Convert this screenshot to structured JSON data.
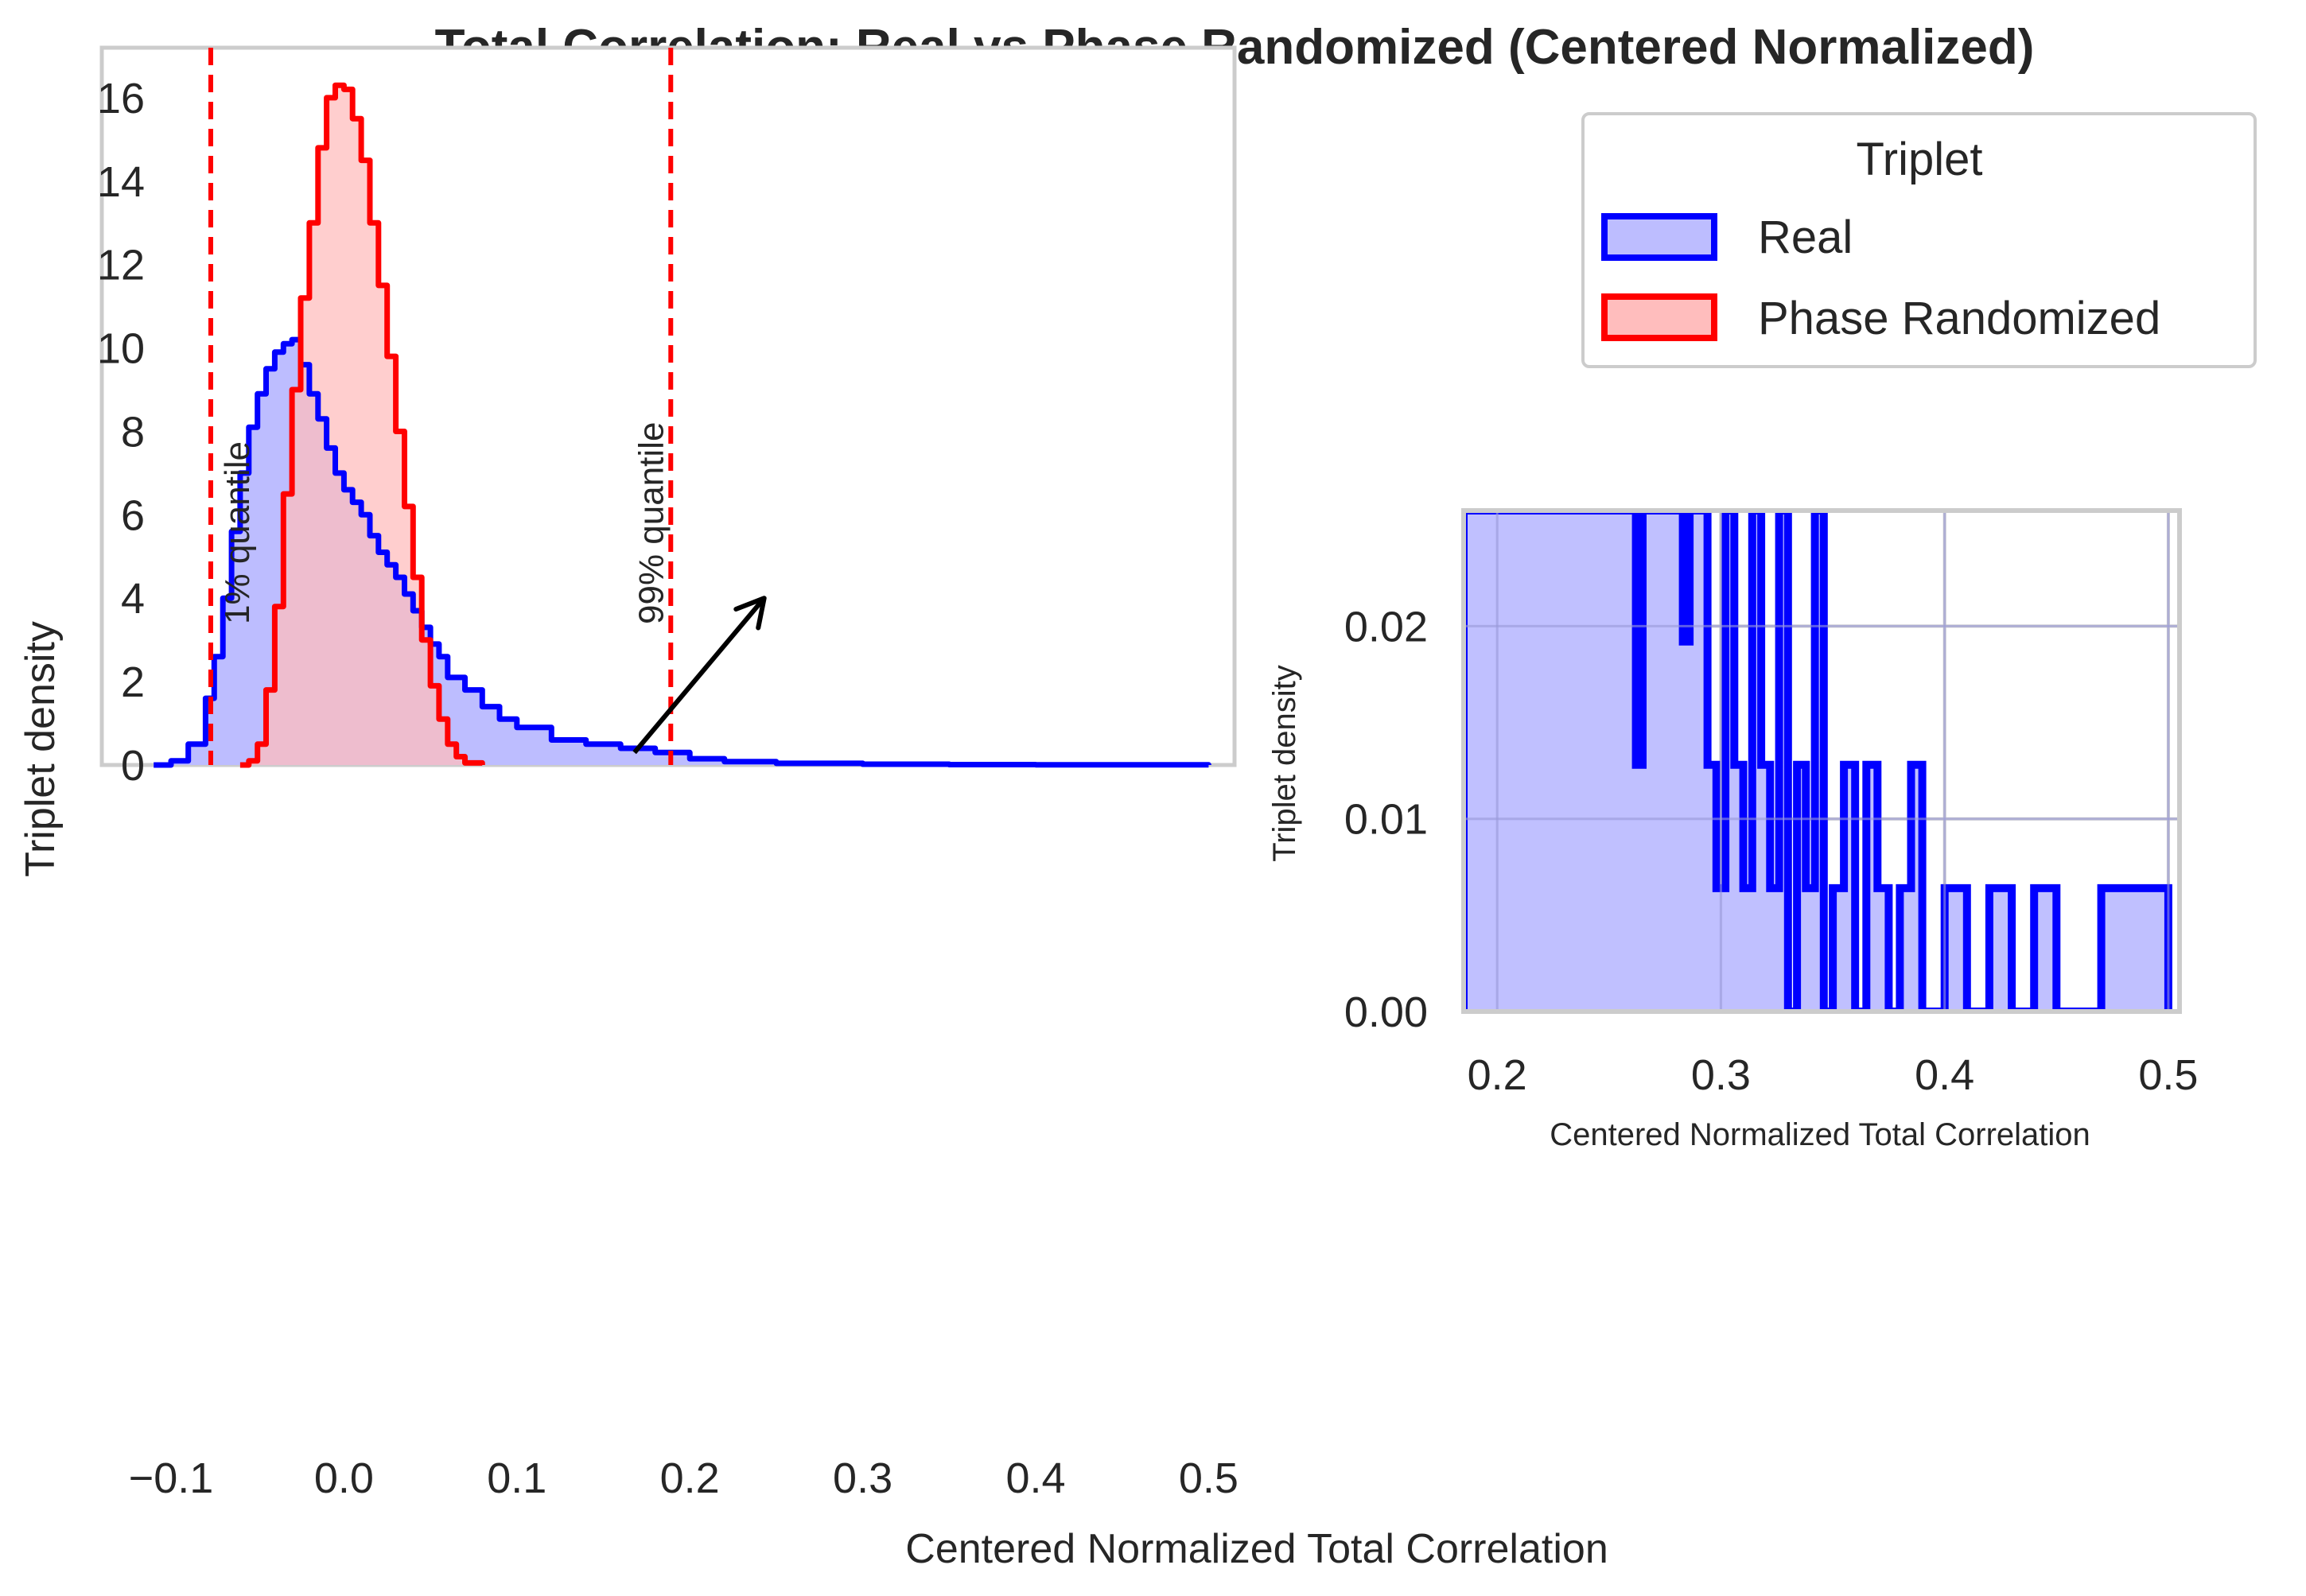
{
  "chart_data": [
    {
      "type": "area",
      "histogram_style": "step",
      "title": "Total Correlation: Real vs Phase Randomized (Centered Normalized)",
      "xlabel": "Centered Normalized Total Correlation",
      "ylabel": "Triplet density",
      "xlim": [
        -0.14,
        0.515
      ],
      "ylim": [
        0,
        17.2
      ],
      "xticks": [
        -0.1,
        0.0,
        0.1,
        0.2,
        0.3,
        0.4,
        0.5
      ],
      "xtick_labels": [
        "−0.1",
        "0.0",
        "0.1",
        "0.2",
        "0.3",
        "0.4",
        "0.5"
      ],
      "yticks": [
        0,
        2,
        4,
        6,
        8,
        10,
        12,
        14,
        16
      ],
      "ytick_labels": [
        "0",
        "2",
        "4",
        "6",
        "8",
        "10",
        "12",
        "14",
        "16"
      ],
      "grid": false,
      "legend": {
        "title": "Triplet",
        "placement": "top-right"
      },
      "series": [
        {
          "name": "Real",
          "color": "#0000ff",
          "fill": "#bdbdff",
          "x": [
            -0.11,
            -0.1,
            -0.09,
            -0.08,
            -0.075,
            -0.07,
            -0.065,
            -0.06,
            -0.055,
            -0.05,
            -0.045,
            -0.04,
            -0.035,
            -0.03,
            -0.025,
            -0.02,
            -0.015,
            -0.01,
            -0.005,
            0.0,
            0.005,
            0.01,
            0.015,
            0.02,
            0.025,
            0.03,
            0.035,
            0.04,
            0.045,
            0.05,
            0.055,
            0.06,
            0.07,
            0.08,
            0.09,
            0.1,
            0.12,
            0.14,
            0.16,
            0.18,
            0.2,
            0.22,
            0.25,
            0.3,
            0.35,
            0.4,
            0.45,
            0.5
          ],
          "y": [
            0.0,
            0.1,
            0.5,
            1.6,
            2.6,
            4.0,
            5.6,
            7.0,
            8.1,
            8.9,
            9.5,
            9.9,
            10.1,
            10.2,
            9.6,
            8.9,
            8.3,
            7.6,
            7.0,
            6.6,
            6.3,
            6.0,
            5.5,
            5.1,
            4.8,
            4.5,
            4.1,
            3.7,
            3.3,
            2.9,
            2.6,
            2.1,
            1.8,
            1.4,
            1.1,
            0.9,
            0.6,
            0.5,
            0.4,
            0.3,
            0.15,
            0.08,
            0.04,
            0.02,
            0.01,
            0.005,
            0.003,
            0.0
          ]
        },
        {
          "name": "Phase Randomized",
          "color": "#ff0000",
          "fill": "#ffbdbd",
          "x": [
            -0.06,
            -0.055,
            -0.05,
            -0.045,
            -0.04,
            -0.035,
            -0.03,
            -0.025,
            -0.02,
            -0.015,
            -0.01,
            -0.005,
            0.0,
            0.005,
            0.01,
            0.015,
            0.02,
            0.025,
            0.03,
            0.035,
            0.04,
            0.045,
            0.05,
            0.055,
            0.06,
            0.065,
            0.07,
            0.08
          ],
          "y": [
            0.0,
            0.1,
            0.5,
            1.8,
            3.8,
            6.5,
            9.0,
            11.2,
            13.0,
            14.8,
            16.0,
            16.3,
            16.2,
            15.5,
            14.5,
            13.0,
            11.5,
            9.8,
            8.0,
            6.2,
            4.5,
            3.0,
            1.9,
            1.1,
            0.5,
            0.2,
            0.05,
            0.0
          ]
        }
      ],
      "reference_lines": [
        {
          "x": -0.077,
          "label": "1% quantile",
          "color": "#ff0000",
          "style": "dashed"
        },
        {
          "x": 0.189,
          "label": "99% quantile",
          "color": "#ff0000",
          "style": "dashed"
        }
      ],
      "annotation": {
        "type": "arrow",
        "from": [
          0.168,
          0.3
        ],
        "to": [
          0.243,
          4.0
        ],
        "color": "#000000"
      }
    },
    {
      "type": "area",
      "histogram_style": "step",
      "role": "inset",
      "xlabel": "Centered Normalized Total Correlation",
      "ylabel": "Triplet density",
      "xlim": [
        0.185,
        0.505
      ],
      "ylim": [
        0,
        0.026
      ],
      "xticks": [
        0.2,
        0.3,
        0.4,
        0.5
      ],
      "xtick_labels": [
        "0.2",
        "0.3",
        "0.4",
        "0.5"
      ],
      "yticks": [
        0.0,
        0.01,
        0.02
      ],
      "ytick_labels": [
        "0.00",
        "0.01",
        "0.02"
      ],
      "grid": true,
      "series": [
        {
          "name": "Real",
          "color": "#0000ff",
          "fill": "#bdbdff",
          "x": [
            0.185,
            0.26,
            0.262,
            0.265,
            0.27,
            0.275,
            0.28,
            0.283,
            0.286,
            0.29,
            0.294,
            0.298,
            0.302,
            0.306,
            0.31,
            0.314,
            0.318,
            0.322,
            0.326,
            0.33,
            0.334,
            0.338,
            0.342,
            0.346,
            0.35,
            0.355,
            0.36,
            0.365,
            0.37,
            0.375,
            0.38,
            0.385,
            0.39,
            0.4,
            0.41,
            0.42,
            0.43,
            0.44,
            0.45,
            0.47,
            0.49,
            0.495,
            0.5
          ],
          "y": [
            0.026,
            0.026,
            0.0128,
            0.026,
            0.026,
            0.026,
            0.026,
            0.0192,
            0.026,
            0.026,
            0.0128,
            0.0064,
            0.026,
            0.0128,
            0.0064,
            0.026,
            0.0128,
            0.0064,
            0.026,
            0.0,
            0.0128,
            0.0064,
            0.026,
            0.0,
            0.0064,
            0.0128,
            0.0,
            0.0128,
            0.0064,
            0.0,
            0.0064,
            0.0128,
            0.0,
            0.0064,
            0.0,
            0.0064,
            0.0,
            0.0064,
            0.0,
            0.0064,
            0.0064,
            0.0064,
            0.0
          ]
        }
      ]
    }
  ]
}
